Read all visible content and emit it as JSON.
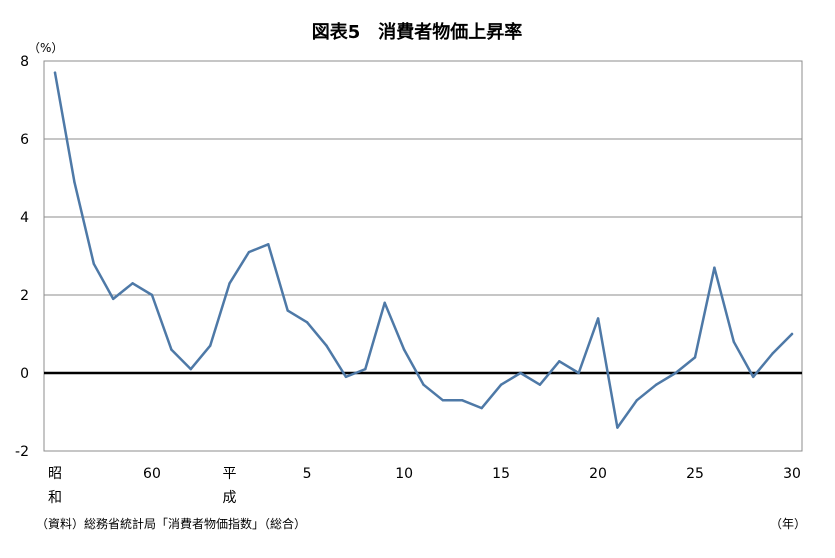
{
  "chart_data": {
    "type": "line",
    "title": "図表5　消費者物価上昇率",
    "y_unit": "（%）",
    "x_unit": "（年）",
    "source": "（資料）総務省統計局「消費者物価指数」（総合）",
    "ylim": [
      -2,
      8
    ],
    "y_ticks": [
      -2,
      0,
      2,
      4,
      6,
      8
    ],
    "grid": true,
    "x_range": [
      0,
      38
    ],
    "x_tick_labels": [
      {
        "pos": 0,
        "lines": [
          "昭",
          "和"
        ]
      },
      {
        "pos": 5,
        "lines": [
          "60"
        ]
      },
      {
        "pos": 9,
        "lines": [
          "平",
          "成"
        ]
      },
      {
        "pos": 13,
        "lines": [
          "5"
        ]
      },
      {
        "pos": 18,
        "lines": [
          "10"
        ]
      },
      {
        "pos": 23,
        "lines": [
          "15"
        ]
      },
      {
        "pos": 28,
        "lines": [
          "20"
        ]
      },
      {
        "pos": 33,
        "lines": [
          "25"
        ]
      },
      {
        "pos": 38,
        "lines": [
          "30"
        ]
      }
    ],
    "series": [
      {
        "color": "#4e79a7",
        "values": [
          7.7,
          4.9,
          2.8,
          1.9,
          2.3,
          2.0,
          0.6,
          0.1,
          0.7,
          2.3,
          3.1,
          3.3,
          1.6,
          1.3,
          0.7,
          -0.1,
          0.1,
          1.8,
          0.6,
          -0.3,
          -0.7,
          -0.7,
          -0.9,
          -0.3,
          0.0,
          -0.3,
          0.3,
          0.0,
          1.4,
          -1.4,
          -0.7,
          -0.3,
          0.0,
          0.4,
          2.7,
          0.8,
          -0.1,
          0.5,
          1.0
        ]
      }
    ]
  }
}
